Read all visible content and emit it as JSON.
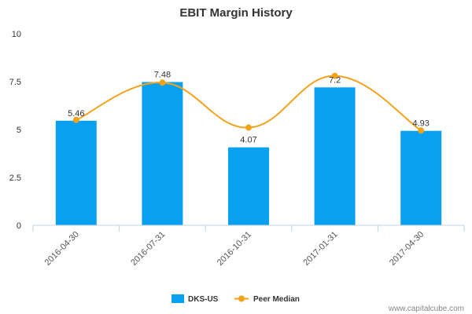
{
  "chart_data": {
    "type": "bar",
    "title": "EBIT Margin History",
    "categories": [
      "2016-04-30",
      "2016-07-31",
      "2016-10-31",
      "2017-01-31",
      "2017-04-30"
    ],
    "series": [
      {
        "name": "DKS-US",
        "kind": "bar",
        "values": [
          5.46,
          7.48,
          4.07,
          7.2,
          4.93
        ],
        "labels": [
          "5.46",
          "7.48",
          "4.07",
          "7.2",
          "4.93"
        ]
      },
      {
        "name": "Peer Median",
        "kind": "line",
        "values": [
          5.5,
          7.45,
          5.1,
          7.8,
          4.95
        ]
      }
    ],
    "ylim": [
      0,
      10
    ],
    "yticks": [
      0,
      2.5,
      5,
      7.5,
      10
    ],
    "ytick_labels": [
      "0",
      "2.5",
      "5",
      "7.5",
      "10"
    ],
    "legend": "bottom-center",
    "credit": "www.capitalcube.com"
  },
  "colors": {
    "bar": "#0aa0f0",
    "line": "#f5a21b",
    "axis": "#c0d0e0"
  }
}
